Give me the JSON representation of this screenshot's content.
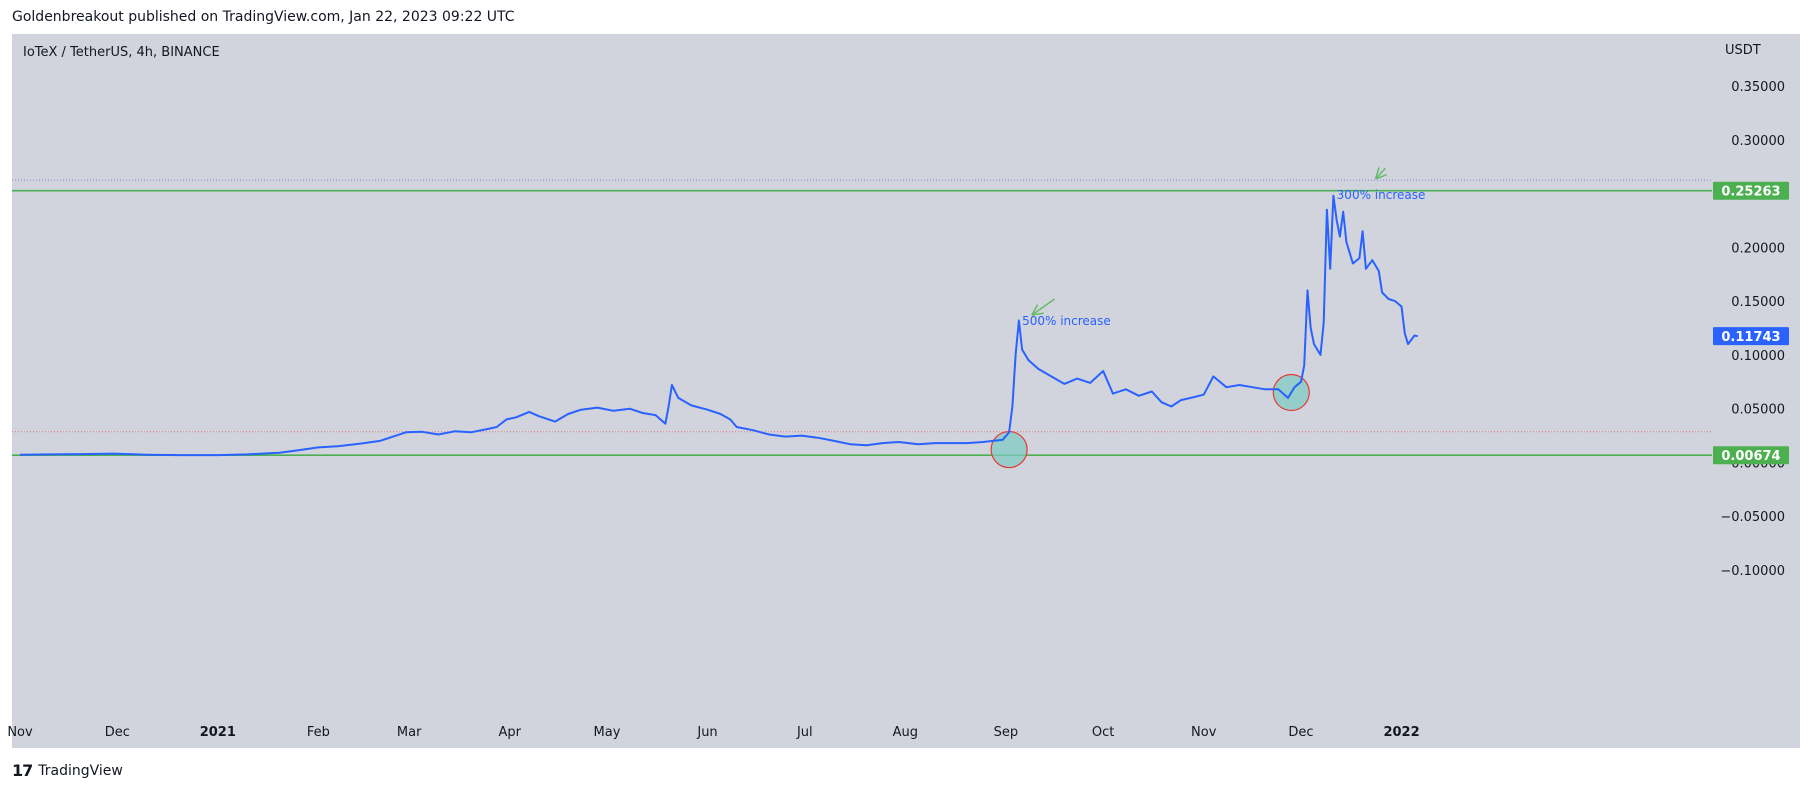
{
  "header": {
    "published": "Goldenbreakout published on TradingView.com, Jan 22, 2023 09:22 UTC"
  },
  "legend": {
    "symbol": "IoTeX / TetherUS, 4h, BINANCE"
  },
  "price_axis": {
    "currency": "USDT"
  },
  "footer": {
    "brand": "TradingView",
    "logo_glyph": "17"
  },
  "colors": {
    "background": "#d1d4dc",
    "line": "#2962ff",
    "support_resistance": "#4caf50",
    "dotted_red": "#e57373",
    "dotted_purple": "#9575cd",
    "circle_fill": "#80cbc4",
    "circle_stroke": "#e53935"
  },
  "chart_data": {
    "type": "line",
    "title": "IoTeX / TetherUS, 4h, BINANCE",
    "ylabel": "USDT",
    "ylim": [
      -0.14,
      0.385
    ],
    "y_ticks": [
      0.35,
      0.3,
      0.2,
      0.15,
      0.1,
      0.05,
      0.0,
      -0.05,
      -0.1
    ],
    "y_tick_labels": [
      "0.35000",
      "0.30000",
      "0.20000",
      "0.15000",
      "0.10000",
      "0.05000",
      "0.00000",
      "−0.05000",
      "−0.10000"
    ],
    "x_range": [
      "2020-11-01",
      "2022-01-28"
    ],
    "x_ticks": [
      {
        "date": "2020-11-01",
        "label": "Nov"
      },
      {
        "date": "2020-12-01",
        "label": "Dec"
      },
      {
        "date": "2021-01-01",
        "label": "2021",
        "year": true
      },
      {
        "date": "2021-02-01",
        "label": "Feb"
      },
      {
        "date": "2021-03-01",
        "label": "Mar"
      },
      {
        "date": "2021-04-01",
        "label": "Apr"
      },
      {
        "date": "2021-05-01",
        "label": "May"
      },
      {
        "date": "2021-06-01",
        "label": "Jun"
      },
      {
        "date": "2021-07-01",
        "label": "Jul"
      },
      {
        "date": "2021-08-01",
        "label": "Aug"
      },
      {
        "date": "2021-09-01",
        "label": "Sep"
      },
      {
        "date": "2021-10-01",
        "label": "Oct"
      },
      {
        "date": "2021-11-01",
        "label": "Nov"
      },
      {
        "date": "2021-12-01",
        "label": "Dec"
      },
      {
        "date": "2022-01-01",
        "label": "2022",
        "year": true
      }
    ],
    "series": [
      {
        "values": [
          [
            "2020-11-01",
            0.0072
          ],
          [
            "2020-11-10",
            0.0075
          ],
          [
            "2020-11-20",
            0.0078
          ],
          [
            "2020-11-30",
            0.0082
          ],
          [
            "2020-12-10",
            0.0072
          ],
          [
            "2020-12-20",
            0.0068
          ],
          [
            "2021-01-01",
            0.0068
          ],
          [
            "2021-01-10",
            0.0075
          ],
          [
            "2021-01-20",
            0.009
          ],
          [
            "2021-01-25",
            0.011
          ],
          [
            "2021-02-01",
            0.014
          ],
          [
            "2021-02-07",
            0.015
          ],
          [
            "2021-02-14",
            0.0175
          ],
          [
            "2021-02-20",
            0.02
          ],
          [
            "2021-02-25",
            0.025
          ],
          [
            "2021-02-28",
            0.028
          ],
          [
            "2021-03-05",
            0.0285
          ],
          [
            "2021-03-10",
            0.026
          ],
          [
            "2021-03-15",
            0.029
          ],
          [
            "2021-03-20",
            0.028
          ],
          [
            "2021-03-25",
            0.031
          ],
          [
            "2021-03-28",
            0.033
          ],
          [
            "2021-03-31",
            0.04
          ],
          [
            "2021-04-03",
            0.042
          ],
          [
            "2021-04-07",
            0.047
          ],
          [
            "2021-04-10",
            0.043
          ],
          [
            "2021-04-15",
            0.038
          ],
          [
            "2021-04-19",
            0.045
          ],
          [
            "2021-04-23",
            0.049
          ],
          [
            "2021-04-28",
            0.051
          ],
          [
            "2021-05-03",
            0.048
          ],
          [
            "2021-05-08",
            0.05
          ],
          [
            "2021-05-12",
            0.046
          ],
          [
            "2021-05-16",
            0.044
          ],
          [
            "2021-05-19",
            0.036
          ],
          [
            "2021-05-20",
            0.052
          ],
          [
            "2021-05-21",
            0.072
          ],
          [
            "2021-05-23",
            0.06
          ],
          [
            "2021-05-27",
            0.053
          ],
          [
            "2021-06-01",
            0.049
          ],
          [
            "2021-06-05",
            0.045
          ],
          [
            "2021-06-08",
            0.04
          ],
          [
            "2021-06-10",
            0.033
          ],
          [
            "2021-06-15",
            0.03
          ],
          [
            "2021-06-20",
            0.026
          ],
          [
            "2021-06-25",
            0.024
          ],
          [
            "2021-06-30",
            0.025
          ],
          [
            "2021-07-05",
            0.023
          ],
          [
            "2021-07-10",
            0.02
          ],
          [
            "2021-07-15",
            0.017
          ],
          [
            "2021-07-20",
            0.016
          ],
          [
            "2021-07-25",
            0.018
          ],
          [
            "2021-07-30",
            0.019
          ],
          [
            "2021-08-05",
            0.017
          ],
          [
            "2021-08-10",
            0.018
          ],
          [
            "2021-08-15",
            0.018
          ],
          [
            "2021-08-20",
            0.018
          ],
          [
            "2021-08-25",
            0.019
          ],
          [
            "2021-08-28",
            0.02
          ],
          [
            "2021-08-31",
            0.021
          ],
          [
            "2021-09-02",
            0.028
          ],
          [
            "2021-09-03",
            0.052
          ],
          [
            "2021-09-04",
            0.1
          ],
          [
            "2021-09-05",
            0.132
          ],
          [
            "2021-09-06",
            0.105
          ],
          [
            "2021-09-08",
            0.095
          ],
          [
            "2021-09-11",
            0.087
          ],
          [
            "2021-09-15",
            0.08
          ],
          [
            "2021-09-19",
            0.073
          ],
          [
            "2021-09-23",
            0.078
          ],
          [
            "2021-09-27",
            0.074
          ],
          [
            "2021-10-01",
            0.085
          ],
          [
            "2021-10-04",
            0.064
          ],
          [
            "2021-10-08",
            0.068
          ],
          [
            "2021-10-12",
            0.062
          ],
          [
            "2021-10-16",
            0.066
          ],
          [
            "2021-10-19",
            0.056
          ],
          [
            "2021-10-22",
            0.052
          ],
          [
            "2021-10-25",
            0.058
          ],
          [
            "2021-10-28",
            0.06
          ],
          [
            "2021-11-01",
            0.063
          ],
          [
            "2021-11-04",
            0.08
          ],
          [
            "2021-11-08",
            0.07
          ],
          [
            "2021-11-12",
            0.072
          ],
          [
            "2021-11-16",
            0.07
          ],
          [
            "2021-11-20",
            0.068
          ],
          [
            "2021-11-24",
            0.068
          ],
          [
            "2021-11-27",
            0.06
          ],
          [
            "2021-11-29",
            0.07
          ],
          [
            "2021-12-01",
            0.075
          ],
          [
            "2021-12-02",
            0.09
          ],
          [
            "2021-12-03",
            0.16
          ],
          [
            "2021-12-04",
            0.125
          ],
          [
            "2021-12-05",
            0.11
          ],
          [
            "2021-12-07",
            0.1
          ],
          [
            "2021-12-08",
            0.13
          ],
          [
            "2021-12-09",
            0.235
          ],
          [
            "2021-12-10",
            0.18
          ],
          [
            "2021-12-11",
            0.248
          ],
          [
            "2021-12-12",
            0.225
          ],
          [
            "2021-12-13",
            0.21
          ],
          [
            "2021-12-14",
            0.233
          ],
          [
            "2021-12-15",
            0.205
          ],
          [
            "2021-12-17",
            0.185
          ],
          [
            "2021-12-19",
            0.19
          ],
          [
            "2021-12-20",
            0.215
          ],
          [
            "2021-12-21",
            0.18
          ],
          [
            "2021-12-23",
            0.188
          ],
          [
            "2021-12-25",
            0.178
          ],
          [
            "2021-12-26",
            0.158
          ],
          [
            "2021-12-28",
            0.152
          ],
          [
            "2021-12-30",
            0.15
          ],
          [
            "2022-01-01",
            0.145
          ],
          [
            "2022-01-02",
            0.12
          ],
          [
            "2022-01-03",
            0.11
          ],
          [
            "2022-01-05",
            0.118
          ],
          [
            "2022-01-06",
            0.1174
          ]
        ]
      }
    ],
    "horizontal_lines": [
      {
        "y": 0.25263,
        "style": "solid",
        "color": "#4caf50"
      },
      {
        "y": 0.00674,
        "style": "solid",
        "color": "#4caf50"
      },
      {
        "y": 0.2625,
        "style": "dotted",
        "color": "#9575cd"
      },
      {
        "y": 0.0285,
        "style": "dotted",
        "color": "#e57373"
      }
    ],
    "price_tags": [
      {
        "value": 0.25263,
        "label": "0.25263",
        "color": "#4caf50"
      },
      {
        "value": 0.11743,
        "label": "0.11743",
        "color": "#2962ff"
      },
      {
        "value": 0.00674,
        "label": "0.00674",
        "color": "#4caf50"
      }
    ],
    "annotations": [
      {
        "text": "500% increase",
        "date": "2021-09-06",
        "value": 0.128
      },
      {
        "text": "300% increase",
        "date": "2021-12-12",
        "value": 0.245
      }
    ],
    "circles": [
      {
        "date": "2021-09-02",
        "value": 0.012
      },
      {
        "date": "2021-11-28",
        "value": 0.065
      }
    ],
    "arrows": [
      {
        "from_date": "2021-09-16",
        "from_value": 0.152,
        "to_date": "2021-09-09",
        "to_value": 0.137
      },
      {
        "from_date": "2021-12-27",
        "from_value": 0.2735,
        "to_date": "2021-12-24",
        "to_value": 0.2635
      }
    ],
    "grid": false,
    "legend_position": "top-left"
  }
}
